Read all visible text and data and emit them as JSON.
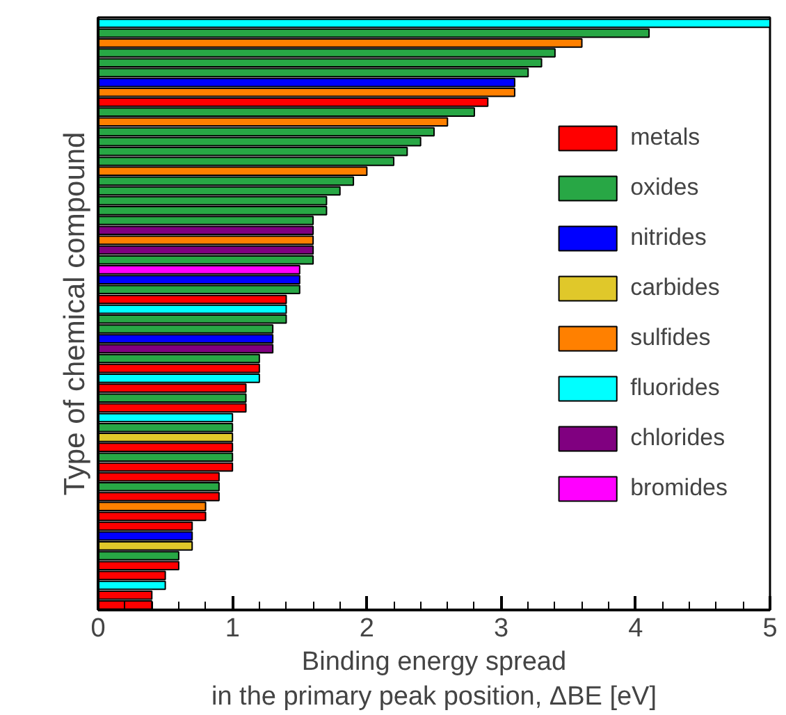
{
  "chart_data": {
    "type": "bar",
    "orientation": "horizontal",
    "ylabel": "Type of chemical compound",
    "xlabel": "Binding energy spread\nin the primary peak position, ΔBE [eV]",
    "categories": [
      null,
      null,
      null,
      null,
      null,
      null,
      null,
      null,
      null,
      null,
      null,
      null,
      null,
      null,
      null,
      null,
      null,
      null,
      null,
      null,
      null,
      null,
      null,
      null,
      null,
      null,
      null,
      null,
      null,
      null,
      null,
      null,
      null,
      null,
      null,
      null,
      null,
      null,
      null,
      null,
      null,
      null,
      null,
      null,
      null,
      null,
      null,
      null,
      null,
      null,
      null,
      null,
      null,
      null,
      null,
      null,
      null,
      null,
      null,
      null
    ],
    "xlim": [
      0,
      5
    ],
    "xticks": [
      0,
      {
        "value": 0.2,
        "label": null
      },
      {
        "value": 0.4,
        "label": null
      },
      {
        "value": 0.6,
        "label": null
      },
      {
        "value": 0.8,
        "label": null
      },
      1,
      {
        "value": 1.2,
        "label": null
      },
      {
        "value": 1.4,
        "label": null
      },
      {
        "value": 1.6,
        "label": null
      },
      {
        "value": 1.8,
        "label": null
      },
      2,
      {
        "value": 2.2,
        "label": null
      },
      {
        "value": 2.4,
        "label": null
      },
      {
        "value": 2.6,
        "label": null
      },
      {
        "value": 2.8,
        "label": null
      },
      3,
      {
        "value": 3.2,
        "label": null
      },
      {
        "value": 3.4,
        "label": null
      },
      {
        "value": 3.6,
        "label": null
      },
      {
        "value": 3.8,
        "label": null
      },
      4,
      {
        "value": 4.2,
        "label": null
      },
      {
        "value": 4.4,
        "label": null
      },
      {
        "value": 4.6,
        "label": null
      },
      {
        "value": 4.8,
        "label": null
      },
      5
    ],
    "legend": "right",
    "grid": false,
    "series": [
      {
        "name": "metals",
        "color": "#ff0000",
        "values": [
          null,
          null,
          null,
          null,
          null,
          null,
          null,
          null,
          2.9,
          null,
          null,
          null,
          null,
          null,
          null,
          null,
          null,
          null,
          null,
          null,
          null,
          null,
          null,
          null,
          null,
          null,
          null,
          null,
          1.4,
          null,
          null,
          null,
          null,
          null,
          null,
          1.2,
          null,
          1.1,
          null,
          1.1,
          null,
          null,
          null,
          1.0,
          null,
          1.0,
          0.9,
          null,
          0.9,
          null,
          0.8,
          0.7,
          null,
          null,
          null,
          0.6,
          0.5,
          null,
          0.4,
          0.4
        ]
      },
      {
        "name": "oxides",
        "color": "#28a745",
        "values": [
          null,
          4.1,
          null,
          3.4,
          3.3,
          3.2,
          null,
          null,
          null,
          2.8,
          null,
          2.5,
          2.4,
          2.3,
          2.2,
          null,
          1.9,
          1.8,
          1.7,
          1.7,
          1.6,
          null,
          null,
          null,
          1.6,
          null,
          null,
          1.5,
          null,
          null,
          1.4,
          1.3,
          null,
          null,
          1.2,
          null,
          null,
          null,
          1.1,
          null,
          null,
          1.0,
          null,
          null,
          1.0,
          null,
          null,
          0.9,
          null,
          null,
          null,
          null,
          null,
          null,
          0.6,
          null,
          null,
          null,
          null,
          null
        ]
      },
      {
        "name": "nitrides",
        "color": "#0000ff",
        "values": [
          null,
          null,
          null,
          null,
          null,
          null,
          3.1,
          null,
          null,
          null,
          null,
          null,
          null,
          null,
          null,
          null,
          null,
          null,
          null,
          null,
          null,
          null,
          null,
          null,
          null,
          null,
          1.5,
          null,
          null,
          null,
          null,
          null,
          1.3,
          null,
          null,
          null,
          null,
          null,
          null,
          null,
          null,
          null,
          null,
          null,
          null,
          null,
          null,
          null,
          null,
          null,
          null,
          null,
          0.7,
          null,
          null,
          null,
          null,
          null,
          null,
          null
        ]
      },
      {
        "name": "carbides",
        "color": "#e0c82a",
        "values": [
          null,
          null,
          null,
          null,
          null,
          null,
          null,
          null,
          null,
          null,
          null,
          null,
          null,
          null,
          null,
          null,
          null,
          null,
          null,
          null,
          null,
          null,
          null,
          null,
          null,
          null,
          null,
          null,
          null,
          null,
          null,
          null,
          null,
          null,
          null,
          null,
          null,
          null,
          null,
          null,
          null,
          null,
          1.0,
          null,
          null,
          null,
          null,
          null,
          null,
          null,
          null,
          null,
          null,
          0.7,
          null,
          null,
          null,
          null,
          null,
          null
        ]
      },
      {
        "name": "sulfides",
        "color": "#ff8000",
        "values": [
          null,
          null,
          3.6,
          null,
          null,
          null,
          null,
          3.1,
          null,
          null,
          2.6,
          null,
          null,
          null,
          null,
          2.0,
          null,
          null,
          null,
          null,
          null,
          null,
          1.6,
          null,
          null,
          null,
          null,
          null,
          null,
          null,
          null,
          null,
          null,
          null,
          null,
          null,
          null,
          null,
          null,
          null,
          null,
          null,
          null,
          null,
          null,
          null,
          null,
          null,
          null,
          0.8,
          null,
          null,
          null,
          null,
          null,
          null,
          null,
          null,
          null,
          null
        ]
      },
      {
        "name": "fluorides",
        "color": "#00ffff",
        "values": [
          5.0,
          null,
          null,
          null,
          null,
          null,
          null,
          null,
          null,
          null,
          null,
          null,
          null,
          null,
          null,
          null,
          null,
          null,
          null,
          null,
          null,
          null,
          null,
          null,
          null,
          null,
          null,
          null,
          null,
          1.4,
          null,
          null,
          null,
          null,
          null,
          null,
          1.2,
          null,
          null,
          null,
          1.0,
          null,
          null,
          null,
          null,
          null,
          null,
          null,
          null,
          null,
          null,
          null,
          null,
          null,
          null,
          null,
          null,
          0.5,
          null,
          null
        ]
      },
      {
        "name": "chlorides",
        "color": "#800080",
        "values": [
          null,
          null,
          null,
          null,
          null,
          null,
          null,
          null,
          null,
          null,
          null,
          null,
          null,
          null,
          null,
          null,
          null,
          null,
          null,
          null,
          null,
          1.6,
          null,
          1.6,
          null,
          null,
          null,
          null,
          null,
          null,
          null,
          null,
          null,
          1.3,
          null,
          null,
          null,
          null,
          null,
          null,
          null,
          null,
          null,
          null,
          null,
          null,
          null,
          null,
          null,
          null,
          null,
          null,
          null,
          null,
          null,
          null,
          null,
          null,
          null,
          null
        ]
      },
      {
        "name": "bromides",
        "color": "#ff00ff",
        "values": [
          null,
          null,
          null,
          null,
          null,
          null,
          null,
          null,
          null,
          null,
          null,
          null,
          null,
          null,
          null,
          null,
          null,
          null,
          null,
          null,
          null,
          null,
          null,
          null,
          null,
          1.5,
          null,
          null,
          null,
          null,
          null,
          null,
          null,
          null,
          null,
          null,
          null,
          null,
          null,
          null,
          null,
          null,
          null,
          null,
          null,
          null,
          null,
          null,
          null,
          null,
          null,
          null,
          null,
          null,
          null,
          null,
          null,
          null,
          null,
          null
        ]
      }
    ]
  }
}
